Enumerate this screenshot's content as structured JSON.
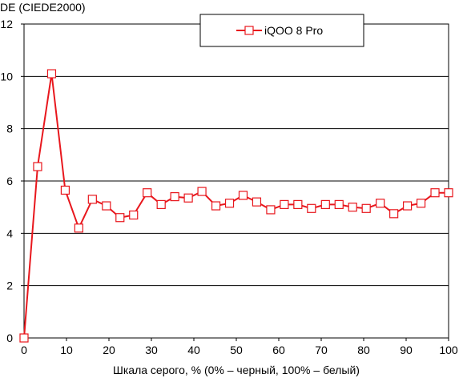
{
  "chart_data": {
    "type": "line",
    "title": "",
    "xlabel": "Шкала серого, % (0% – черный, 100% – белый)",
    "ylabel": "DE (CIEDE2000)",
    "xlim": [
      0,
      100
    ],
    "ylim": [
      0,
      12
    ],
    "x_ticks": [
      "0",
      "10",
      "20",
      "30",
      "40",
      "50",
      "60",
      "70",
      "80",
      "90",
      "100"
    ],
    "y_ticks": [
      "0",
      "2",
      "4",
      "6",
      "8",
      "10",
      "12"
    ],
    "grid": "horizontal",
    "legend_position": "top-right",
    "series": [
      {
        "name": "iQOO 8 Pro",
        "color": "#e8171d",
        "marker": "open-square",
        "x": [
          0,
          3.2,
          6.5,
          9.7,
          12.9,
          16.1,
          19.4,
          22.6,
          25.8,
          29.0,
          32.3,
          35.5,
          38.7,
          41.9,
          45.2,
          48.4,
          51.6,
          54.8,
          58.1,
          61.3,
          64.5,
          67.7,
          71.0,
          74.2,
          77.4,
          80.6,
          83.9,
          87.1,
          90.3,
          93.5,
          96.8,
          100
        ],
        "y": [
          0,
          6.55,
          10.1,
          5.65,
          4.2,
          5.3,
          5.05,
          4.6,
          4.7,
          5.55,
          5.1,
          5.4,
          5.35,
          5.6,
          5.05,
          5.15,
          5.45,
          5.2,
          4.9,
          5.1,
          5.1,
          4.95,
          5.1,
          5.1,
          5.0,
          4.95,
          5.15,
          4.75,
          5.05,
          5.15,
          5.55,
          5.55
        ]
      }
    ]
  }
}
